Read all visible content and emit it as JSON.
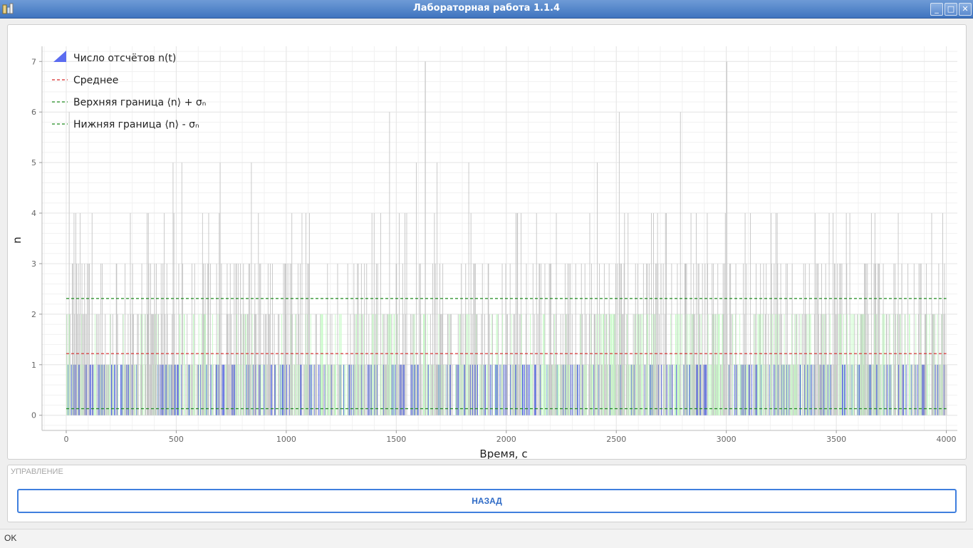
{
  "window": {
    "title": "Лабораторная работа 1.1.4"
  },
  "chart_data": {
    "type": "bar",
    "xlabel": "Время, с",
    "ylabel": "n",
    "xlim": [
      -110,
      4050
    ],
    "ylim": [
      -0.3,
      7.3
    ],
    "x_ticks": [
      0,
      500,
      1000,
      1500,
      2000,
      2500,
      3000,
      3500,
      4000
    ],
    "y_ticks": [
      0,
      1,
      2,
      3,
      4,
      5,
      6,
      7
    ],
    "grid": true,
    "legend_position": "top-left",
    "legend": [
      {
        "label": "Число отсчётов n(t)",
        "style": "bars",
        "color": "#5b6cf0"
      },
      {
        "label": "Среднее",
        "style": "dashed",
        "color": "#d62728"
      },
      {
        "label": "Верхняя граница ⟨n⟩ + σₙ",
        "style": "dashed",
        "color": "#1d8a1d"
      },
      {
        "label": "Нижняя граница ⟨n⟩ - σₙ",
        "style": "dashed",
        "color": "#1d8a1d"
      }
    ],
    "mean": 1.22,
    "upper_bound": 2.31,
    "lower_bound": 0.13,
    "series_range": [
      0,
      4000
    ],
    "max_count": 7,
    "colors": {
      "bars": "#c4c4c4",
      "in_band": "#c6fbc6",
      "low": "#4f62dd",
      "grid": "#e6e6e6"
    }
  },
  "controls": {
    "title": "УПРАВЛЕНИЕ",
    "back_label": "НАЗАД"
  },
  "status": {
    "text": "OK"
  }
}
